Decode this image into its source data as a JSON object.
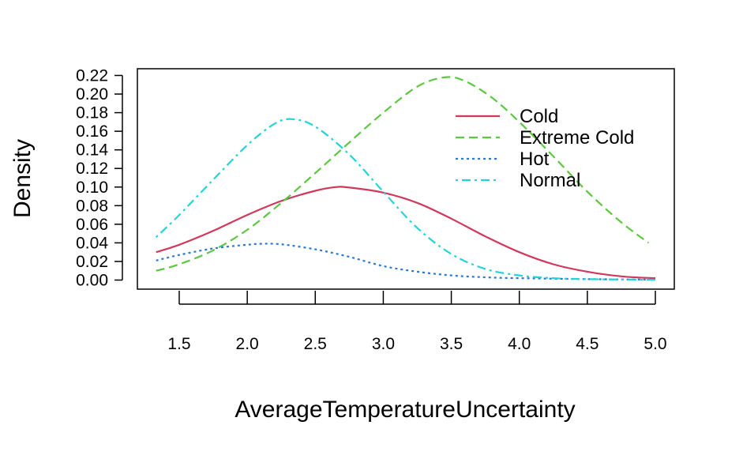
{
  "chart_data": {
    "type": "line",
    "xlabel": "AverageTemperatureUncertainty",
    "ylabel": "Density",
    "xlim": [
      1.33,
      5.0
    ],
    "ylim": [
      0,
      0.22
    ],
    "x_ticks": [
      "1.5",
      "2.0",
      "2.5",
      "3.0",
      "3.5",
      "4.0",
      "4.5",
      "5.0"
    ],
    "y_ticks": [
      "0.00",
      "0.02",
      "0.04",
      "0.06",
      "0.08",
      "0.10",
      "0.12",
      "0.14",
      "0.16",
      "0.18",
      "0.20",
      "0.22"
    ],
    "legend_position": "top-right",
    "grid": false,
    "series": [
      {
        "name": "Cold",
        "color": "#d1395b",
        "dash": "solid",
        "points": [
          [
            1.33,
            0.03
          ],
          [
            1.5,
            0.038
          ],
          [
            1.75,
            0.053
          ],
          [
            2.0,
            0.07
          ],
          [
            2.25,
            0.085
          ],
          [
            2.5,
            0.096
          ],
          [
            2.65,
            0.1
          ],
          [
            2.75,
            0.0995
          ],
          [
            3.0,
            0.094
          ],
          [
            3.25,
            0.083
          ],
          [
            3.5,
            0.066
          ],
          [
            3.75,
            0.047
          ],
          [
            4.0,
            0.03
          ],
          [
            4.25,
            0.017
          ],
          [
            4.5,
            0.009
          ],
          [
            4.75,
            0.004
          ],
          [
            5.0,
            0.002
          ]
        ]
      },
      {
        "name": "Extreme Cold",
        "color": "#5cc83f",
        "dash": "dashed",
        "points": [
          [
            1.33,
            0.01
          ],
          [
            1.5,
            0.017
          ],
          [
            1.75,
            0.032
          ],
          [
            2.0,
            0.054
          ],
          [
            2.25,
            0.083
          ],
          [
            2.5,
            0.115
          ],
          [
            2.75,
            0.148
          ],
          [
            3.0,
            0.18
          ],
          [
            3.25,
            0.208
          ],
          [
            3.45,
            0.218
          ],
          [
            3.6,
            0.214
          ],
          [
            3.8,
            0.196
          ],
          [
            4.0,
            0.17
          ],
          [
            4.25,
            0.133
          ],
          [
            4.5,
            0.095
          ],
          [
            4.75,
            0.062
          ],
          [
            4.95,
            0.04
          ]
        ]
      },
      {
        "name": "Hot",
        "color": "#2a78d6",
        "dash": "dotted",
        "points": [
          [
            1.33,
            0.021
          ],
          [
            1.5,
            0.027
          ],
          [
            1.75,
            0.034
          ],
          [
            2.0,
            0.038
          ],
          [
            2.1,
            0.039
          ],
          [
            2.25,
            0.0385
          ],
          [
            2.5,
            0.033
          ],
          [
            2.75,
            0.025
          ],
          [
            3.0,
            0.015
          ],
          [
            3.25,
            0.009
          ],
          [
            3.5,
            0.005
          ],
          [
            3.75,
            0.003
          ],
          [
            4.0,
            0.002
          ],
          [
            4.5,
            0.001
          ],
          [
            5.0,
            0.0005
          ]
        ]
      },
      {
        "name": "Normal",
        "color": "#22d4d8",
        "dash": "dotdash",
        "points": [
          [
            1.33,
            0.046
          ],
          [
            1.5,
            0.07
          ],
          [
            1.75,
            0.108
          ],
          [
            2.0,
            0.145
          ],
          [
            2.2,
            0.168
          ],
          [
            2.33,
            0.173
          ],
          [
            2.5,
            0.165
          ],
          [
            2.75,
            0.135
          ],
          [
            3.0,
            0.095
          ],
          [
            3.25,
            0.056
          ],
          [
            3.5,
            0.028
          ],
          [
            3.75,
            0.012
          ],
          [
            4.0,
            0.005
          ],
          [
            4.25,
            0.002
          ],
          [
            4.5,
            0.001
          ],
          [
            5.0,
            0.0003
          ]
        ]
      }
    ]
  }
}
